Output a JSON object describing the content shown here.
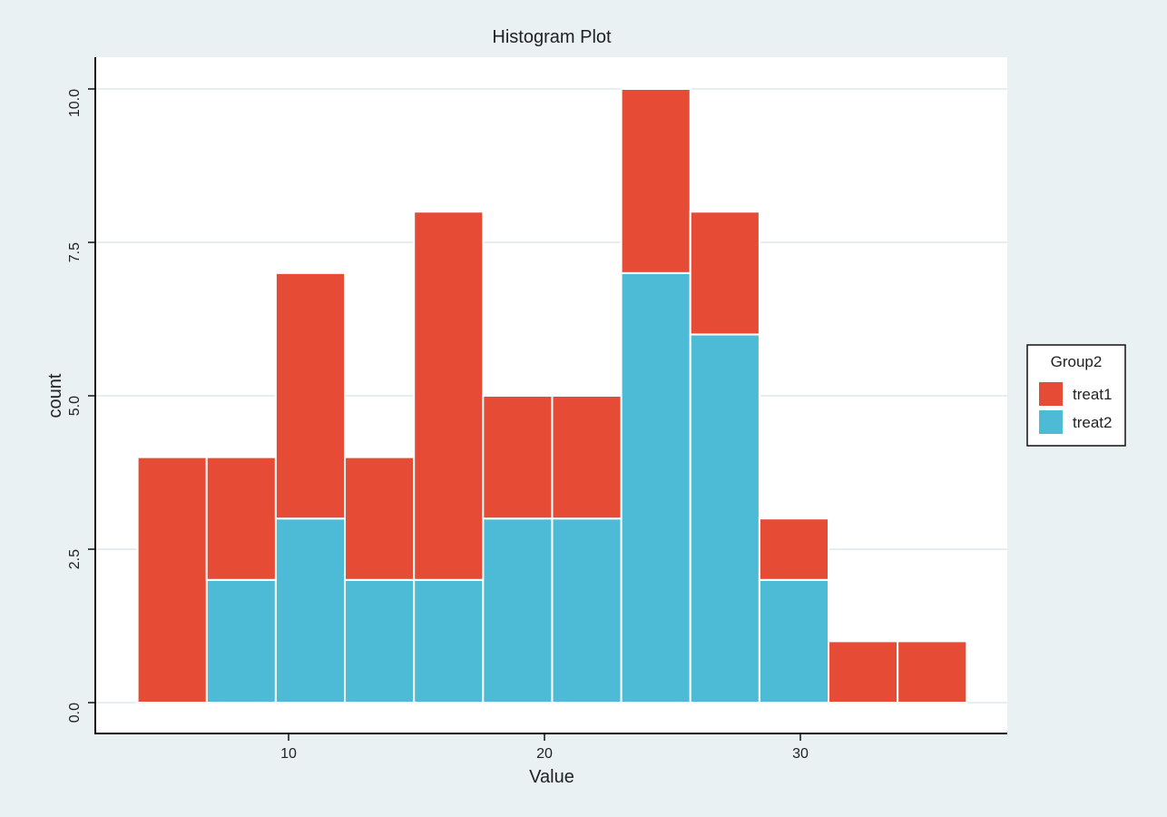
{
  "chart_data": {
    "type": "bar",
    "subtype": "stacked-histogram",
    "title": "Histogram Plot",
    "xlabel": "Value",
    "ylabel": "count",
    "xlim": [
      2.5,
      38.2
    ],
    "ylim": [
      -0.5,
      10.5
    ],
    "xticks": [
      10,
      20,
      30
    ],
    "xtick_labels": [
      "10",
      "20",
      "30"
    ],
    "yticks": [
      0,
      2.5,
      5,
      7.5,
      10
    ],
    "ytick_labels": [
      "0.0",
      "2.5",
      "5.0",
      "7.5",
      "10.0"
    ],
    "grid": true,
    "bin_edges": [
      4.1,
      6.8,
      9.5,
      12.2,
      14.9,
      17.6,
      20.3,
      23.0,
      25.7,
      28.4,
      31.1,
      33.8,
      36.5
    ],
    "series": [
      {
        "name": "treat2",
        "color": "#4dbbd5",
        "values": [
          0,
          2,
          3,
          2,
          2,
          3,
          3,
          7,
          6,
          2,
          0,
          0
        ]
      },
      {
        "name": "treat1",
        "color": "#e64b35",
        "values": [
          4,
          2,
          4,
          2,
          6,
          2,
          2,
          3,
          2,
          1,
          1,
          1
        ]
      }
    ],
    "legend": {
      "title": "Group2",
      "placement": "right",
      "entries": [
        "treat1",
        "treat2"
      ]
    },
    "background": "#eaf1f3"
  }
}
